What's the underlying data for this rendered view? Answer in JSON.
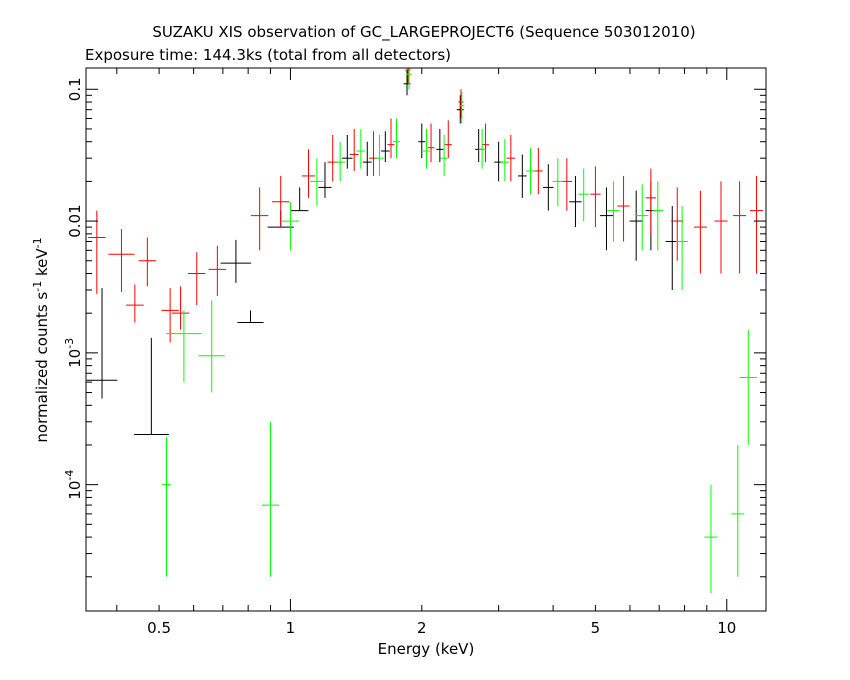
{
  "chart_data": {
    "type": "scatter",
    "title": "SUZAKU XIS observation of GC_LARGEPROJECT6 (Sequence 503012010)",
    "subtitle": "Exposure time: 144.3ks (total from all detectors)",
    "xlabel": "Energy (keV)",
    "ylabel": "normalized counts s",
    "ylabel_sup1": "-1",
    "ylabel_mid": " keV",
    "ylabel_sup2": "-1",
    "xscale": "log",
    "yscale": "log",
    "xlim": [
      0.34,
      12.3
    ],
    "ylim": [
      1.1e-05,
      0.145
    ],
    "x_ticks": [
      {
        "value": 0.5,
        "label": "0.5"
      },
      {
        "value": 1,
        "label": "1"
      },
      {
        "value": 2,
        "label": "2"
      },
      {
        "value": 5,
        "label": "5"
      },
      {
        "value": 10,
        "label": "10"
      }
    ],
    "y_ticks": [
      {
        "value": 0.0001,
        "mant": "10",
        "exp": "-4"
      },
      {
        "value": 0.001,
        "mant": "10",
        "exp": "-3"
      },
      {
        "value": 0.01,
        "label": "0.01"
      },
      {
        "value": 0.1,
        "label": "0.1"
      }
    ],
    "series": [
      {
        "color": "#000000",
        "points": [
          [
            0.37,
            0.00062,
            0.035,
            0.00045,
            0.0031
          ],
          [
            0.48,
            0.00024,
            0.04,
            0.00024,
            0.0013
          ],
          [
            0.75,
            0.0048,
            0.035,
            0.0034,
            0.0072
          ],
          [
            0.81,
            0.0017,
            0.03,
            0.0017,
            0.0021
          ],
          [
            0.95,
            0.009,
            0.03,
            0.009,
            0.012
          ],
          [
            1.05,
            0.012,
            0.02,
            0.012,
            0.018
          ],
          [
            1.2,
            0.018,
            0.015,
            0.015,
            0.028
          ],
          [
            1.35,
            0.03,
            0.012,
            0.025,
            0.045
          ],
          [
            1.5,
            0.028,
            0.01,
            0.022,
            0.04
          ],
          [
            1.65,
            0.034,
            0.01,
            0.028,
            0.048
          ],
          [
            1.85,
            0.11,
            0.008,
            0.09,
            0.14
          ],
          [
            2.0,
            0.04,
            0.008,
            0.03,
            0.055
          ],
          [
            2.2,
            0.035,
            0.008,
            0.028,
            0.05
          ],
          [
            2.45,
            0.07,
            0.008,
            0.055,
            0.09
          ],
          [
            2.7,
            0.035,
            0.008,
            0.028,
            0.05
          ],
          [
            3.0,
            0.028,
            0.01,
            0.02,
            0.04
          ],
          [
            3.4,
            0.022,
            0.01,
            0.015,
            0.032
          ],
          [
            3.9,
            0.018,
            0.012,
            0.012,
            0.027
          ],
          [
            4.5,
            0.014,
            0.014,
            0.009,
            0.022
          ],
          [
            5.3,
            0.011,
            0.015,
            0.006,
            0.018
          ],
          [
            6.2,
            0.01,
            0.015,
            0.005,
            0.017
          ],
          [
            6.7,
            0.012,
            0.012,
            0.006,
            0.02
          ],
          [
            7.5,
            0.007,
            0.015,
            0.003,
            0.013
          ]
        ]
      },
      {
        "color": "#ff0000",
        "points": [
          [
            0.36,
            0.0075,
            0.02,
            0.0028,
            0.012
          ],
          [
            0.41,
            0.0056,
            0.03,
            0.0029,
            0.0087
          ],
          [
            0.44,
            0.0023,
            0.02,
            0.0017,
            0.0033
          ],
          [
            0.47,
            0.005,
            0.02,
            0.0032,
            0.0075
          ],
          [
            0.53,
            0.0021,
            0.02,
            0.0012,
            0.0031
          ],
          [
            0.56,
            0.002,
            0.02,
            0.0015,
            0.0032
          ],
          [
            0.61,
            0.004,
            0.02,
            0.0023,
            0.0058
          ],
          [
            0.68,
            0.0043,
            0.02,
            0.0027,
            0.0065
          ],
          [
            0.85,
            0.011,
            0.02,
            0.006,
            0.018
          ],
          [
            0.95,
            0.014,
            0.02,
            0.009,
            0.022
          ],
          [
            1.1,
            0.022,
            0.015,
            0.015,
            0.035
          ],
          [
            1.25,
            0.028,
            0.012,
            0.02,
            0.045
          ],
          [
            1.4,
            0.032,
            0.01,
            0.024,
            0.05
          ],
          [
            1.55,
            0.03,
            0.01,
            0.022,
            0.048
          ],
          [
            1.7,
            0.038,
            0.008,
            0.03,
            0.06
          ],
          [
            1.86,
            0.14,
            0.006,
            0.11,
            0.145
          ],
          [
            2.1,
            0.036,
            0.008,
            0.028,
            0.055
          ],
          [
            2.3,
            0.038,
            0.008,
            0.03,
            0.058
          ],
          [
            2.46,
            0.08,
            0.006,
            0.06,
            0.1
          ],
          [
            2.8,
            0.038,
            0.008,
            0.028,
            0.055
          ],
          [
            3.2,
            0.03,
            0.01,
            0.02,
            0.045
          ],
          [
            3.7,
            0.024,
            0.01,
            0.016,
            0.036
          ],
          [
            4.3,
            0.02,
            0.012,
            0.012,
            0.03
          ],
          [
            5.0,
            0.016,
            0.012,
            0.009,
            0.026
          ],
          [
            5.8,
            0.013,
            0.014,
            0.007,
            0.022
          ],
          [
            6.7,
            0.015,
            0.012,
            0.008,
            0.025
          ],
          [
            7.7,
            0.01,
            0.014,
            0.005,
            0.018
          ],
          [
            8.7,
            0.009,
            0.015,
            0.004,
            0.017
          ],
          [
            9.7,
            0.01,
            0.015,
            0.004,
            0.02
          ],
          [
            10.7,
            0.011,
            0.015,
            0.004,
            0.02
          ],
          [
            11.7,
            0.012,
            0.015,
            0.004,
            0.022
          ]
        ]
      },
      {
        "color": "#00ff00",
        "points": [
          [
            0.52,
            0.0001,
            0.01,
            2e-05,
            0.00023
          ],
          [
            0.57,
            0.0014,
            0.04,
            0.0006,
            0.0021
          ],
          [
            0.66,
            0.00095,
            0.03,
            0.0005,
            0.0025
          ],
          [
            0.9,
            7e-05,
            0.02,
            2e-05,
            0.0003
          ],
          [
            1.0,
            0.01,
            0.02,
            0.006,
            0.014
          ],
          [
            1.15,
            0.02,
            0.015,
            0.013,
            0.03
          ],
          [
            1.3,
            0.028,
            0.012,
            0.02,
            0.04
          ],
          [
            1.45,
            0.034,
            0.01,
            0.025,
            0.05
          ],
          [
            1.6,
            0.03,
            0.01,
            0.022,
            0.045
          ],
          [
            1.75,
            0.04,
            0.008,
            0.03,
            0.06
          ],
          [
            1.87,
            0.13,
            0.006,
            0.1,
            0.145
          ],
          [
            2.05,
            0.034,
            0.008,
            0.025,
            0.05
          ],
          [
            2.25,
            0.03,
            0.008,
            0.022,
            0.045
          ],
          [
            2.47,
            0.075,
            0.006,
            0.055,
            0.095
          ],
          [
            2.75,
            0.035,
            0.008,
            0.025,
            0.05
          ],
          [
            3.1,
            0.028,
            0.01,
            0.02,
            0.042
          ],
          [
            3.55,
            0.024,
            0.01,
            0.016,
            0.036
          ],
          [
            4.1,
            0.02,
            0.012,
            0.013,
            0.03
          ],
          [
            4.7,
            0.016,
            0.012,
            0.01,
            0.025
          ],
          [
            5.5,
            0.012,
            0.014,
            0.007,
            0.02
          ],
          [
            6.4,
            0.011,
            0.014,
            0.006,
            0.019
          ],
          [
            6.95,
            0.012,
            0.012,
            0.006,
            0.02
          ],
          [
            7.9,
            0.007,
            0.014,
            0.003,
            0.013
          ],
          [
            9.2,
            4e-05,
            0.015,
            1.5e-05,
            0.0001
          ],
          [
            10.6,
            6e-05,
            0.015,
            2e-05,
            0.0002
          ],
          [
            11.2,
            0.00065,
            0.02,
            0.0002,
            0.0015
          ]
        ]
      }
    ]
  }
}
